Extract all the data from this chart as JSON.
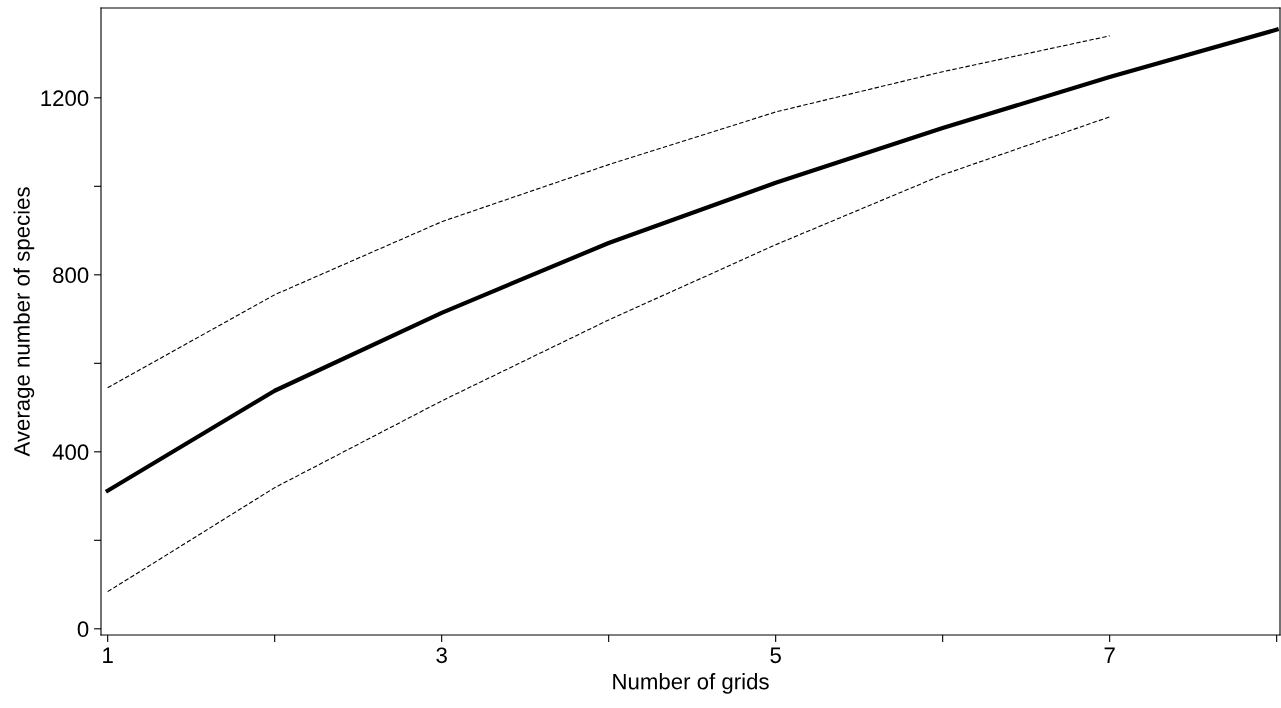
{
  "chart_data": {
    "type": "line",
    "xlabel": "Number of grids",
    "ylabel": "Average number of species",
    "x": [
      1,
      2,
      3,
      4,
      5,
      6,
      7,
      8
    ],
    "series": [
      {
        "color": "#000000",
        "values": [
          312,
          538,
          714,
          872,
          1008,
          1132,
          1247,
          1354
        ],
        "line_style": "solid"
      },
      {
        "color": "#000000",
        "x": [
          1,
          2,
          3,
          4,
          5,
          6,
          7
        ],
        "values": [
          545,
          755,
          920,
          1049,
          1168,
          1259,
          1340
        ],
        "line_style": "dashed"
      },
      {
        "color": "#000000",
        "x": [
          1,
          2,
          3,
          4,
          5,
          6,
          7
        ],
        "values": [
          84,
          319,
          515,
          698,
          868,
          1026,
          1157
        ],
        "line_style": "dashed"
      }
    ],
    "xlim": [
      0.96,
      8.02
    ],
    "ylim": [
      -14,
      1403
    ],
    "xticks": [
      1,
      {
        "value": 2,
        "label": null
      },
      3,
      {
        "value": 4,
        "label": null
      },
      5,
      {
        "value": 6,
        "label": null
      },
      7,
      {
        "value": 8,
        "label": null
      }
    ],
    "yticks": [
      0,
      {
        "value": 200,
        "label": null
      },
      400,
      {
        "value": 600,
        "label": null
      },
      800,
      {
        "value": 1000,
        "label": null
      },
      1200
    ],
    "grid": false,
    "legend": false,
    "marker": "none"
  }
}
